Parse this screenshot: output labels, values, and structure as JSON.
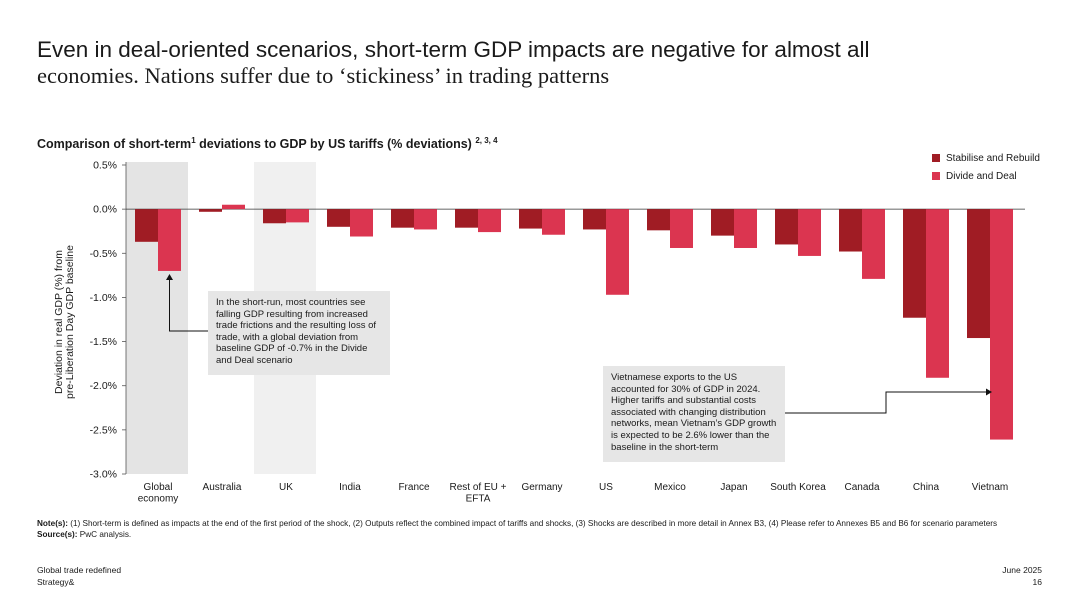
{
  "headline": {
    "line1": "Even in deal-oriented scenarios, short-term GDP impacts are negative for almost all",
    "line2": "economies. Nations suffer due to ‘stickiness’ in trading patterns"
  },
  "chart_title": {
    "text": "Comparison of short-term",
    "sup1": "1",
    "text2": " deviations to GDP by US tariffs (% deviations) ",
    "sup2": "2, 3, 4"
  },
  "chart_data": {
    "type": "bar",
    "ylabel_line1": "Deviation in real GDP (%) from",
    "ylabel_line2": "pre-Liberation Day GDP baseline",
    "ylim": [
      -3.0,
      0.5
    ],
    "yticks": [
      0.5,
      0.0,
      -0.5,
      -1.0,
      -1.5,
      -2.0,
      -2.5,
      -3.0
    ],
    "ytick_labels": [
      "0.5%",
      "0.0%",
      "-0.5%",
      "-1.0%",
      "-1.5%",
      "-2.0%",
      "-2.5%",
      "-3.0%"
    ],
    "categories": [
      [
        "Global",
        "economy"
      ],
      [
        "Australia"
      ],
      [
        "UK"
      ],
      [
        "India"
      ],
      [
        "France"
      ],
      [
        "Rest of EU +",
        "EFTA"
      ],
      [
        "Germany"
      ],
      [
        "US"
      ],
      [
        "Mexico"
      ],
      [
        "Japan"
      ],
      [
        "South Korea"
      ],
      [
        "Canada"
      ],
      [
        "China"
      ],
      [
        "Vietnam"
      ]
    ],
    "highlighted_categories": [
      "Global economy",
      "UK"
    ],
    "series": [
      {
        "name": "Stabilise and Rebuild",
        "color": "#a01c24",
        "values": [
          -0.37,
          -0.03,
          -0.16,
          -0.2,
          -0.21,
          -0.21,
          -0.22,
          -0.23,
          -0.24,
          -0.3,
          -0.4,
          -0.48,
          -1.23,
          -1.46
        ]
      },
      {
        "name": "Divide and Deal",
        "color": "#db3550",
        "values": [
          -0.7,
          0.05,
          -0.15,
          -0.31,
          -0.23,
          -0.26,
          -0.29,
          -0.97,
          -0.44,
          -0.44,
          -0.53,
          -0.79,
          -1.91,
          -2.61
        ]
      }
    ]
  },
  "callouts": {
    "global": "In the short-run, most countries see falling GDP resulting from increased trade frictions and the resulting loss of trade, with a global deviation from baseline GDP of -0.7% in the Divide and Deal scenario",
    "vietnam": "Vietnamese exports to the US accounted for 30% of GDP in 2024. Higher tariffs and substantial costs associated with changing distribution networks, mean Vietnam’s GDP growth is expected to be 2.6% lower than the baseline in the short-term"
  },
  "notes": {
    "label": "Note(s):",
    "text": " (1) Short-term is defined as impacts at the end of the first period of the shock, (2) Outputs reflect the combined impact of tariffs and shocks, (3) Shocks are described in more detail in Annex B3, (4) Please refer to Annexes B5 and B6 for scenario parameters",
    "source_label": "Source(s):",
    "source_text": " PwC analysis."
  },
  "footer": {
    "left1": "Global trade redefined",
    "left2": "Strategy&",
    "right1": "June 2025",
    "right2": "16"
  }
}
